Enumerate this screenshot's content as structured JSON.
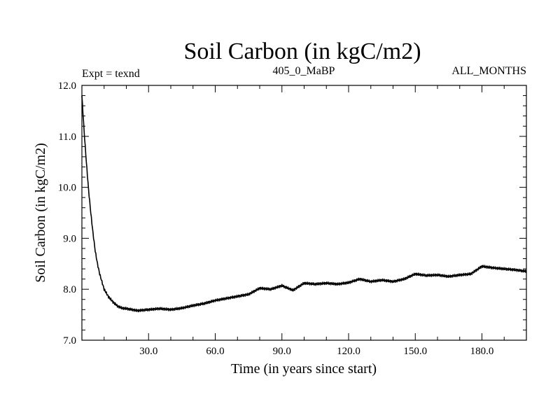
{
  "chart_data": {
    "type": "line",
    "title": "Soil Carbon (in kgC/m2)",
    "subtitle_left": "Expt = texnd",
    "subtitle_center": "405_0_MaBP",
    "subtitle_right": "ALL_MONTHS",
    "xlabel": "Time (in years since start)",
    "ylabel": "Soil Carbon (in kgC/m2)",
    "xlim": [
      0,
      200
    ],
    "ylim": [
      7.0,
      12.0
    ],
    "x_ticks": [
      30.0,
      60.0,
      90.0,
      120.0,
      150.0,
      180.0
    ],
    "x_tick_labels": [
      "30.0",
      "60.0",
      "90.0",
      "120.0",
      "150.0",
      "180.0"
    ],
    "y_ticks": [
      7.0,
      8.0,
      9.0,
      10.0,
      11.0,
      12.0
    ],
    "y_tick_labels": [
      "7.0",
      "8.0",
      "9.0",
      "10.0",
      "11.0",
      "12.0"
    ],
    "grid": false,
    "series": [
      {
        "name": "Soil Carbon",
        "color": "#000000",
        "x": [
          0,
          1,
          2,
          3,
          4,
          5,
          6,
          7,
          8,
          9,
          10,
          12,
          14,
          16,
          18,
          20,
          25,
          30,
          35,
          40,
          45,
          50,
          55,
          60,
          65,
          70,
          75,
          80,
          85,
          90,
          95,
          100,
          105,
          110,
          115,
          120,
          125,
          130,
          135,
          140,
          145,
          150,
          155,
          160,
          165,
          170,
          175,
          180,
          185,
          190,
          195,
          200
        ],
        "values": [
          11.8,
          11.1,
          10.5,
          9.95,
          9.5,
          9.1,
          8.75,
          8.5,
          8.3,
          8.15,
          8.0,
          7.85,
          7.75,
          7.67,
          7.63,
          7.62,
          7.58,
          7.6,
          7.62,
          7.6,
          7.63,
          7.68,
          7.72,
          7.78,
          7.82,
          7.86,
          7.9,
          8.02,
          8.0,
          8.07,
          7.98,
          8.12,
          8.1,
          8.12,
          8.1,
          8.13,
          8.2,
          8.15,
          8.18,
          8.15,
          8.2,
          8.3,
          8.27,
          8.28,
          8.25,
          8.28,
          8.3,
          8.45,
          8.42,
          8.4,
          8.38,
          8.35
        ]
      }
    ]
  }
}
